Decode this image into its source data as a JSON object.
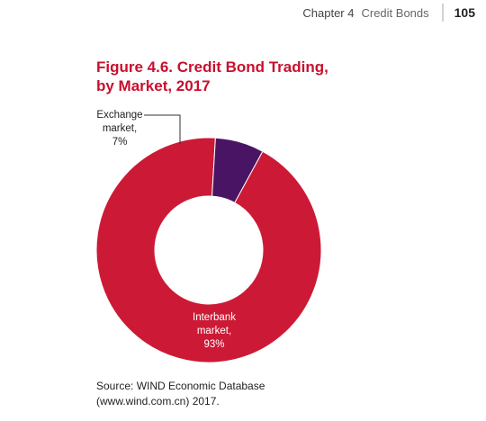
{
  "header": {
    "chapter": "Chapter 4",
    "section": "Credit Bonds",
    "page_number": "105"
  },
  "figure": {
    "title": "Figure 4.6. Credit Bond Trading,\nby Market, 2017"
  },
  "chart_data": {
    "type": "pie",
    "title": "Figure 4.6. Credit Bond Trading, by Market, 2017",
    "slices": [
      {
        "label": [
          "Interbank",
          "market,",
          "93%"
        ],
        "value": 93,
        "color": "#cc1a36"
      },
      {
        "label": [
          "Exchange",
          "market,",
          "7%"
        ],
        "value": 7,
        "color": "#4a1464"
      }
    ],
    "donut": true,
    "legend": "none"
  },
  "source": {
    "line1": "Source: WIND Economic Database",
    "line2": "(www.wind.com.cn) 2017."
  }
}
